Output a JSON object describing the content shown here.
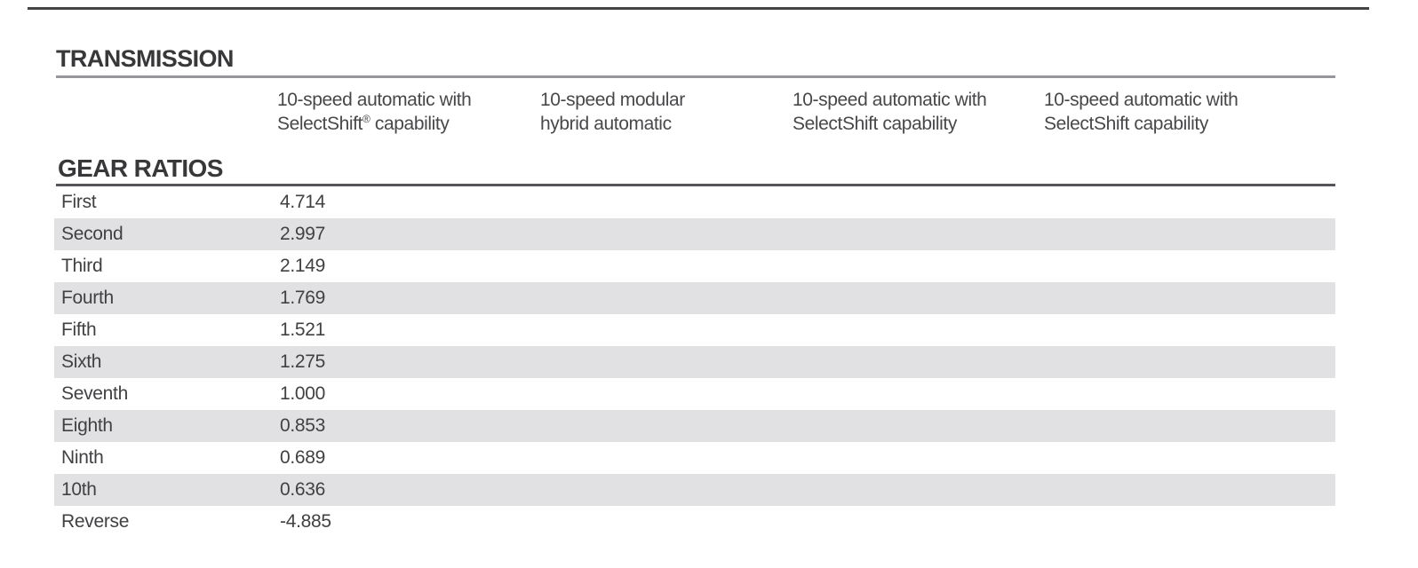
{
  "page": {
    "background": "#ffffff"
  },
  "colors": {
    "top_rule": "#454547",
    "heading_text": "#38383a",
    "header_text": "#48484b",
    "row_text": "#414144",
    "rule_light": "#97979b",
    "rule_dark": "#55565a",
    "row_band": "#e1e1e3"
  },
  "transmission": {
    "title": "TRANSMISSION",
    "columns": [
      {
        "line1": "10-speed automatic with",
        "line2": "SelectShift® capability"
      },
      {
        "line1": "10-speed modular",
        "line2": "hybrid automatic"
      },
      {
        "line1": "10-speed automatic with",
        "line2": "SelectShift capability"
      },
      {
        "line1": "10-speed automatic with",
        "line2": "SelectShift capability"
      }
    ]
  },
  "gear_ratios": {
    "title": "GEAR RATIOS",
    "rows": [
      {
        "label": "First",
        "value": "4.714"
      },
      {
        "label": "Second",
        "value": "2.997"
      },
      {
        "label": "Third",
        "value": "2.149"
      },
      {
        "label": "Fourth",
        "value": "1.769"
      },
      {
        "label": "Fifth",
        "value": "1.521"
      },
      {
        "label": "Sixth",
        "value": "1.275"
      },
      {
        "label": "Seventh",
        "value": "1.000"
      },
      {
        "label": "Eighth",
        "value": "0.853"
      },
      {
        "label": "Ninth",
        "value": "0.689"
      },
      {
        "label": "10th",
        "value": "0.636"
      },
      {
        "label": "Reverse",
        "value": "-4.885"
      }
    ]
  }
}
